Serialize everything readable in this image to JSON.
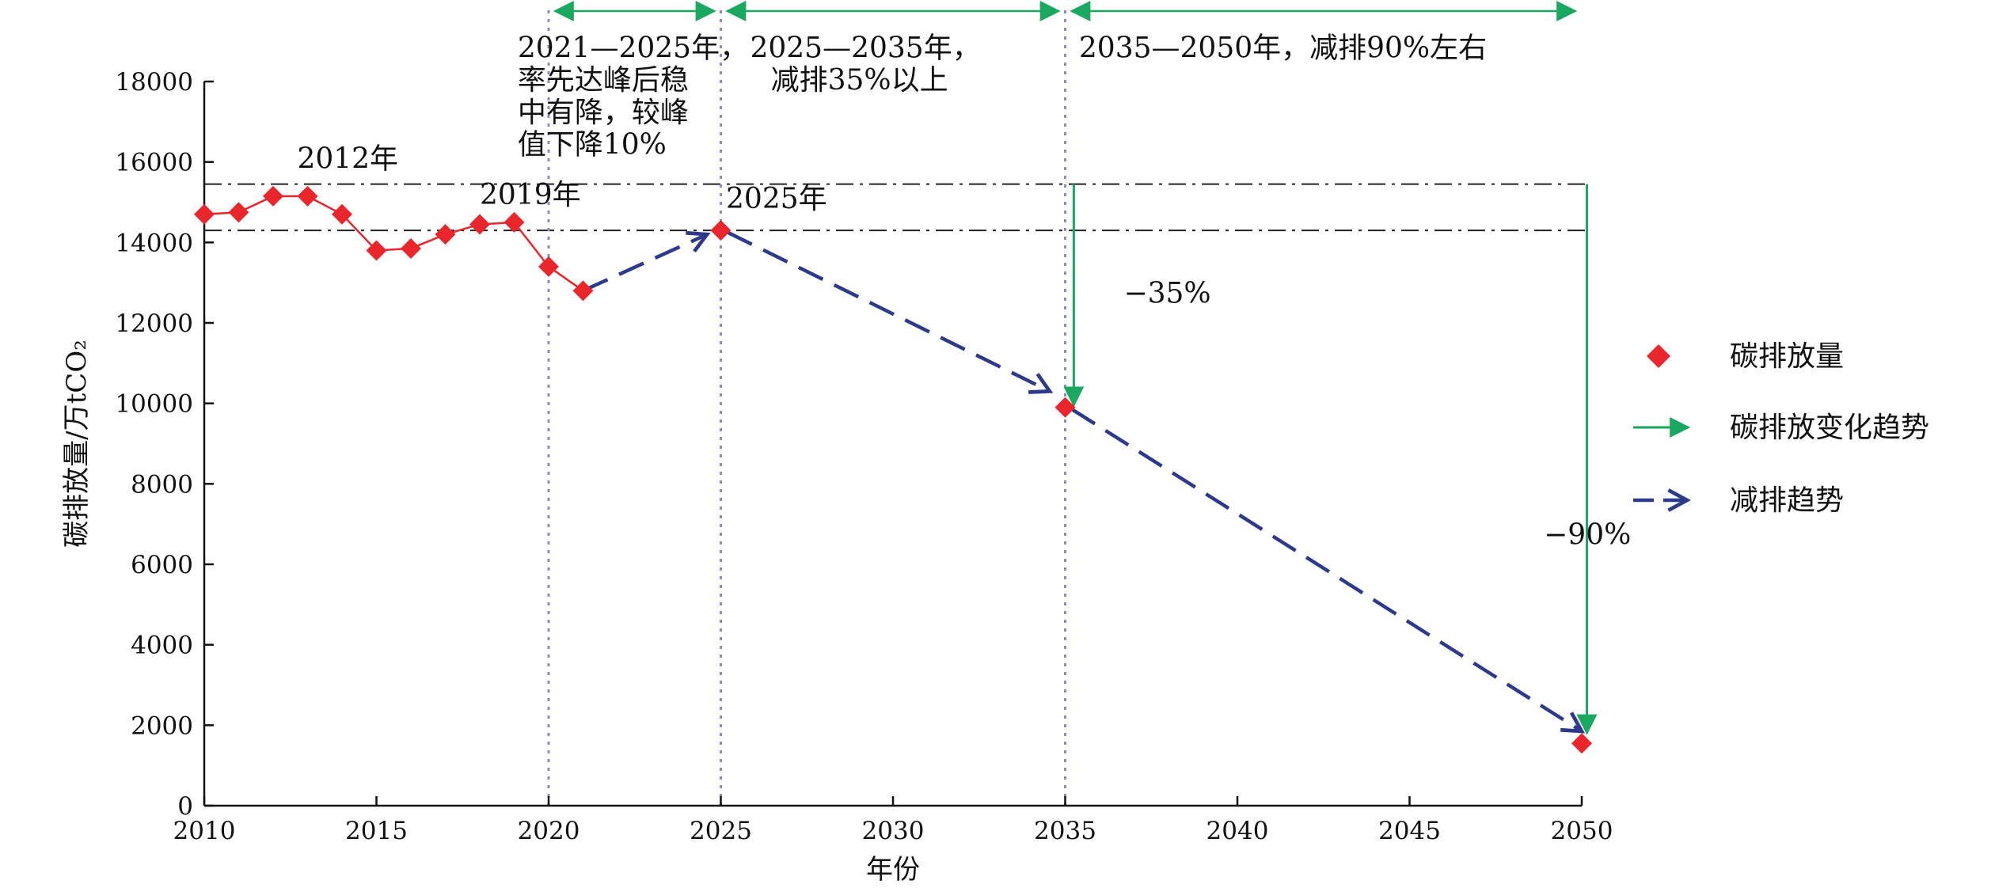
{
  "chart_data": {
    "type": "line",
    "xlabel": "年份",
    "ylabel": "碳排放量/万tCO₂",
    "xlim": [
      2010,
      2050
    ],
    "ylim": [
      0,
      18000
    ],
    "xticks": [
      2010,
      2015,
      2020,
      2025,
      2030,
      2035,
      2040,
      2045,
      2050
    ],
    "yticks": [
      0,
      2000,
      4000,
      6000,
      8000,
      10000,
      12000,
      14000,
      16000,
      18000
    ],
    "grid": false,
    "legend_position": "right",
    "series": [
      {
        "name": "碳排放量",
        "marker": "diamond",
        "color": "#e8262c",
        "points": [
          {
            "x": 2010,
            "y": 14700
          },
          {
            "x": 2011,
            "y": 14750
          },
          {
            "x": 2012,
            "y": 15150
          },
          {
            "x": 2013,
            "y": 15150
          },
          {
            "x": 2014,
            "y": 14700
          },
          {
            "x": 2015,
            "y": 13800
          },
          {
            "x": 2016,
            "y": 13850
          },
          {
            "x": 2017,
            "y": 14200
          },
          {
            "x": 2018,
            "y": 14450
          },
          {
            "x": 2019,
            "y": 14500
          },
          {
            "x": 2020,
            "y": 13400
          },
          {
            "x": 2021,
            "y": 12800
          },
          {
            "x": 2025,
            "y": 14300
          },
          {
            "x": 2035,
            "y": 9900
          },
          {
            "x": 2050,
            "y": 1550
          }
        ]
      },
      {
        "name": "碳排放变化趋势",
        "style": "solid-arrow",
        "color": "#1aa860",
        "arrows": [
          {
            "x1": 2035.25,
            "y1": 15450,
            "x2": 2035.25,
            "y2": 9950
          },
          {
            "x1": 2050.15,
            "y1": 15450,
            "x2": 2050.15,
            "y2": 1800
          }
        ]
      },
      {
        "name": "减排趋势",
        "style": "dashed-arrow",
        "color": "#2d3a8c",
        "arrows": [
          {
            "x1": 2021.0,
            "y1": 12800,
            "x2": 2024.6,
            "y2": 14200
          },
          {
            "x1": 2025.2,
            "y1": 14250,
            "x2": 2034.55,
            "y2": 10300
          },
          {
            "x1": 2035.2,
            "y1": 9850,
            "x2": 2050.0,
            "y2": 1850
          }
        ]
      }
    ],
    "reference_lines": {
      "horizontal": [
        15450,
        14300
      ],
      "vertical": [
        2020,
        2025,
        2035
      ]
    },
    "period_arrows": [
      {
        "from": 2020,
        "to": 2025
      },
      {
        "from": 2025,
        "to": 2035
      },
      {
        "from": 2035,
        "to": 2050
      }
    ],
    "annotations": [
      {
        "text": "2012年",
        "x": 2012.7,
        "y": 15850
      },
      {
        "text": "2019年",
        "x": 2018.0,
        "y": 14950
      },
      {
        "text": "2025年",
        "x": 2025.15,
        "y": 14850
      },
      {
        "text": "−35%",
        "x": 2036.7,
        "y": 12500
      },
      {
        "text": "−90%",
        "x": 2048.9,
        "y": 6500
      },
      {
        "text": "2021—2025年，",
        "x": 2019.1,
        "y": 18600
      },
      {
        "text": "率先达峰后稳",
        "x": 2019.1,
        "y": 17800
      },
      {
        "text": "中有降，较峰",
        "x": 2019.1,
        "y": 17000
      },
      {
        "text": "值下降10%",
        "x": 2019.1,
        "y": 16200
      },
      {
        "text": "2025—2035年，",
        "x": 2025.85,
        "y": 18600
      },
      {
        "text": "减排35%以上",
        "x": 2026.45,
        "y": 17800
      },
      {
        "text": "2035—2050年，减排90%左右",
        "x": 2035.4,
        "y": 18600
      }
    ]
  }
}
